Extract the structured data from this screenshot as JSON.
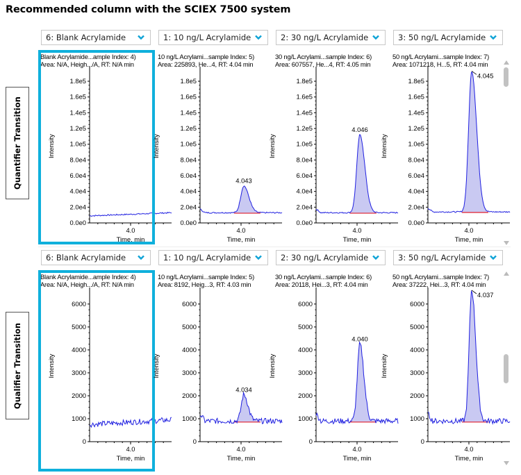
{
  "title": "Recommended column with the SCIEX 7500 system",
  "colors": {
    "accent": "#0fb0dc",
    "trace": "#2020e0",
    "baseline": "#e03040",
    "fill": "#c8c8f0"
  },
  "rows": [
    {
      "label": "Quantifier Transition",
      "yaxis": {
        "label": "Intensity",
        "ticks": [
          "0.0e0",
          "2.0e4",
          "4.0e4",
          "6.0e4",
          "8.0e4",
          "1.0e5",
          "1.2e5",
          "1.4e5",
          "1.6e5",
          "1.8e5"
        ],
        "tick_values": [
          0,
          20000,
          40000,
          60000,
          80000,
          100000,
          120000,
          140000,
          160000,
          180000
        ],
        "max": 195000
      },
      "xaxis": {
        "label": "Time, min",
        "tick": "4.0"
      },
      "panels": [
        {
          "dropdown": "6: Blank Acrylamide",
          "info1": "Blank Acrylamide...ample Index: 4)",
          "info2": "Area: N/A, Heigh.../A, RT: N/A min",
          "peak_label": "",
          "peak_height": 0,
          "baseline": 9000,
          "highlighted": true
        },
        {
          "dropdown": "1: 10 ng/L Acrylamide",
          "info1": "10 ng/L Acrylami...sample Index: 5)",
          "info2": "Area: 225893, He...4, RT: 4.04 min",
          "peak_label": "4.043",
          "peak_height": 47000,
          "baseline": 13000,
          "highlighted": false
        },
        {
          "dropdown": "2: 30 ng/L Acrylamide",
          "info1": "30 ng/L Acrylami...sample Index: 6)",
          "info2": "Area: 607557, He...4, RT: 4.05 min",
          "peak_label": "4.046",
          "peak_height": 112000,
          "baseline": 13000,
          "highlighted": false
        },
        {
          "dropdown": "3: 50 ng/L Acrylamide",
          "info1": "50 ng/L Acrylami...sample Index: 7)",
          "info2": "Area: 1071218, H...5, RT: 4.04 min",
          "peak_label": "4.045",
          "peak_height": 193000,
          "baseline": 14000,
          "highlighted": false
        }
      ]
    },
    {
      "label": "Qualifier Transition",
      "yaxis": {
        "label": "Intensity",
        "ticks": [
          "0",
          "1000",
          "2000",
          "3000",
          "4000",
          "5000",
          "6000"
        ],
        "tick_values": [
          0,
          1000,
          2000,
          3000,
          4000,
          5000,
          6000
        ],
        "max": 6600
      },
      "xaxis": {
        "label": "Time, min",
        "tick": "4.0"
      },
      "panels": [
        {
          "dropdown": "6: Blank Acrylamide",
          "info1": "Blank Acrylamide...ample Index: 4)",
          "info2": "Area: N/A, Heigh.../A, RT: N/A min",
          "peak_label": "",
          "peak_height": 0,
          "baseline": 750,
          "highlighted": true
        },
        {
          "dropdown": "1: 10 ng/L Acrylamide",
          "info1": "10 ng/L Acrylami...sample Index: 5)",
          "info2": "Area: 8192, Heig...3, RT: 4.03 min",
          "peak_label": "4.034",
          "peak_height": 2050,
          "baseline": 900,
          "highlighted": false
        },
        {
          "dropdown": "2: 30 ng/L Acrylamide",
          "info1": "30 ng/L Acrylami...sample Index: 6)",
          "info2": "Area: 20118, Hei...3, RT: 4.04 min",
          "peak_label": "4.040",
          "peak_height": 4250,
          "baseline": 900,
          "highlighted": false
        },
        {
          "dropdown": "3: 50 ng/L Acrylamide",
          "info1": "50 ng/L Acrylami...sample Index: 7)",
          "info2": "Area: 37222, Hei...3, RT: 4.04 min",
          "peak_label": "4.037",
          "peak_height": 6600,
          "baseline": 900,
          "highlighted": false
        }
      ]
    }
  ]
}
